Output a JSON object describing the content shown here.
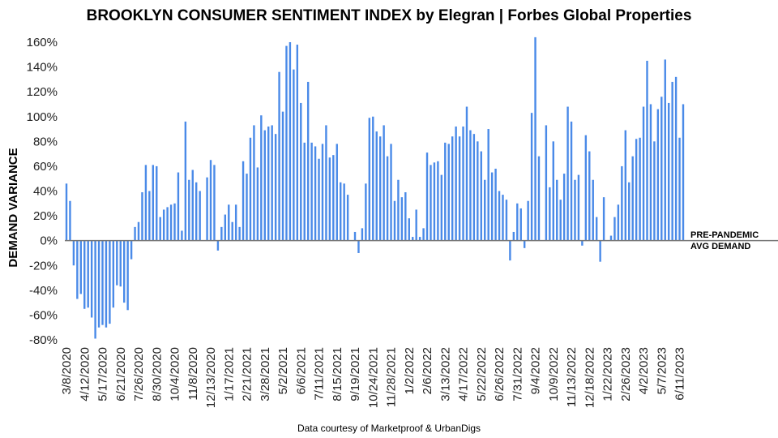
{
  "chart_data": {
    "type": "bar",
    "title": "BROOKLYN CONSUMER SENTIMENT INDEX by Elegran | Forbes Global Properties",
    "ylabel": "DEMAND VARIANCE",
    "xlabel": "",
    "source": "Data courtesy of Marketproof & UrbanDigs",
    "bar_color": "#4a8ae8",
    "baseline_color": "#777777",
    "ylim": [
      -80,
      160
    ],
    "yticks": [
      -80,
      -60,
      -40,
      -20,
      0,
      20,
      40,
      60,
      80,
      100,
      120,
      140,
      160
    ],
    "ytick_labels": [
      "-80%",
      "-60%",
      "-40%",
      "-20%",
      "0%",
      "20%",
      "40%",
      "60%",
      "80%",
      "100%",
      "120%",
      "140%",
      "160%"
    ],
    "annotation": {
      "line1": "PRE-PANDEMIC",
      "line2": "AVG DEMAND"
    },
    "x_tick_labels": [
      {
        "index": 0,
        "label": "3/8/2020"
      },
      {
        "index": 5,
        "label": "4/12/2020"
      },
      {
        "index": 10,
        "label": "5/17/2020"
      },
      {
        "index": 15,
        "label": "6/21/2020"
      },
      {
        "index": 20,
        "label": "7/26/2020"
      },
      {
        "index": 25,
        "label": "8/30/2020"
      },
      {
        "index": 30,
        "label": "10/4/2020"
      },
      {
        "index": 35,
        "label": "11/8/2020"
      },
      {
        "index": 40,
        "label": "12/13/2020"
      },
      {
        "index": 45,
        "label": "1/17/2021"
      },
      {
        "index": 50,
        "label": "2/21/2021"
      },
      {
        "index": 55,
        "label": "3/28/2021"
      },
      {
        "index": 60,
        "label": "5/2/2021"
      },
      {
        "index": 65,
        "label": "6/6/2021"
      },
      {
        "index": 70,
        "label": "7/11/2021"
      },
      {
        "index": 75,
        "label": "8/15/2021"
      },
      {
        "index": 80,
        "label": "9/19/2021"
      },
      {
        "index": 85,
        "label": "10/24/2021"
      },
      {
        "index": 90,
        "label": "11/28/2021"
      },
      {
        "index": 95,
        "label": "1/2/2022"
      },
      {
        "index": 100,
        "label": "2/6/2022"
      },
      {
        "index": 105,
        "label": "3/13/2022"
      },
      {
        "index": 110,
        "label": "4/17/2022"
      },
      {
        "index": 115,
        "label": "5/22/2022"
      },
      {
        "index": 120,
        "label": "6/26/2022"
      },
      {
        "index": 125,
        "label": "7/31/2022"
      },
      {
        "index": 130,
        "label": "9/4/2022"
      },
      {
        "index": 135,
        "label": "10/9/2022"
      },
      {
        "index": 140,
        "label": "11/13/2022"
      },
      {
        "index": 145,
        "label": "12/18/2022"
      },
      {
        "index": 150,
        "label": "1/22/2023"
      },
      {
        "index": 155,
        "label": "2/26/2023"
      },
      {
        "index": 160,
        "label": "4/2/2023"
      },
      {
        "index": 165,
        "label": "5/7/2023"
      },
      {
        "index": 170,
        "label": "6/11/2023"
      }
    ],
    "values": [
      46,
      32,
      -20,
      -47,
      -43,
      -55,
      -54,
      -62,
      -79,
      -70,
      -68,
      -70,
      -67,
      -54,
      -36,
      -37,
      -50,
      -56,
      -15,
      11,
      15,
      39,
      61,
      40,
      61,
      60,
      19,
      25,
      27,
      29,
      30,
      55,
      8,
      96,
      49,
      57,
      47,
      40,
      0,
      51,
      65,
      61,
      -8,
      11,
      21,
      29,
      15,
      29,
      11,
      64,
      54,
      83,
      93,
      59,
      101,
      89,
      92,
      93,
      86,
      136,
      104,
      157,
      160,
      138,
      158,
      111,
      79,
      128,
      79,
      76,
      66,
      78,
      93,
      67,
      69,
      78,
      47,
      46,
      37,
      0,
      7,
      -10,
      10,
      46,
      99,
      100,
      88,
      84,
      93,
      68,
      78,
      32,
      49,
      35,
      39,
      18,
      3,
      25,
      3,
      10,
      71,
      61,
      63,
      64,
      53,
      79,
      78,
      84,
      92,
      84,
      92,
      108,
      89,
      86,
      80,
      72,
      49,
      90,
      55,
      58,
      40,
      37,
      33,
      -16,
      7,
      30,
      26,
      -6,
      32,
      103,
      164,
      68,
      0,
      93,
      43,
      80,
      49,
      33,
      54,
      108,
      96,
      49,
      53,
      -4,
      85,
      72,
      49,
      19,
      -17,
      35,
      0,
      4,
      19,
      29,
      60,
      89,
      47,
      68,
      82,
      83,
      108,
      145,
      110,
      80,
      106,
      116,
      146,
      111,
      128,
      132,
      83,
      110
    ]
  }
}
